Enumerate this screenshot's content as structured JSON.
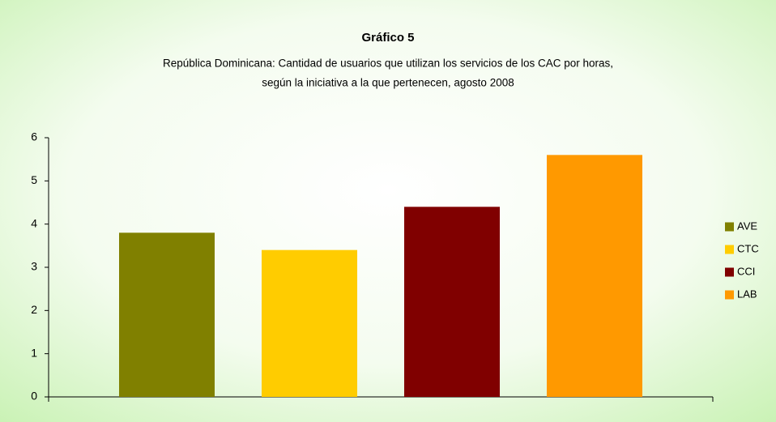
{
  "chart_data": {
    "type": "bar",
    "title": "Gráfico 5",
    "subtitle": [
      "República Dominicana: Cantidad de usuarios que utilizan los servicios de los CAC por  horas,",
      "según la iniciativa a la que pertenecen,  agosto 2008"
    ],
    "series": [
      {
        "name": "AVE",
        "color": "#808000",
        "values": [
          3.8
        ]
      },
      {
        "name": "CTC",
        "color": "#ffcc00",
        "values": [
          3.4
        ]
      },
      {
        "name": "CCI",
        "color": "#800000",
        "values": [
          4.4
        ]
      },
      {
        "name": "LAB",
        "color": "#ff9900",
        "values": [
          5.6
        ]
      }
    ],
    "ylim": [
      0,
      6
    ],
    "yticks": [
      0,
      1,
      2,
      3,
      4,
      5,
      6
    ],
    "legend": "right"
  }
}
